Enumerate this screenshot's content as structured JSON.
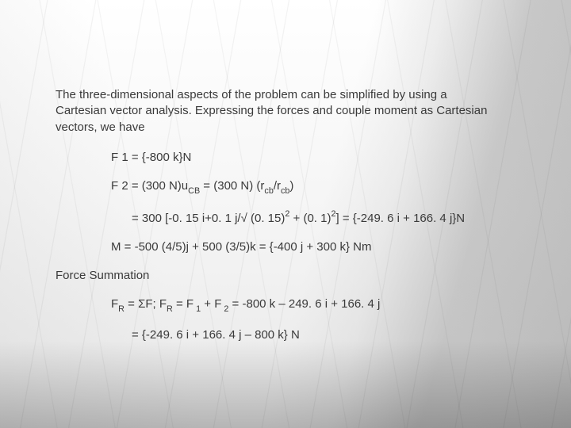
{
  "text_color": "#3a3a3a",
  "font_family": "Arial",
  "base_font_size_pt": 11,
  "background": {
    "style": "architectural-glass-monochrome",
    "base_gradient": [
      "#ffffff",
      "#f5f5f5",
      "#e8e8e8"
    ],
    "diagonal_tint": [
      "rgba(200,200,200,0.25)",
      "rgba(60,60,60,0.25)"
    ],
    "bottom_shadow": "rgba(0,0,0,0.22)"
  },
  "intro": "The three-dimensional aspects of the problem can be simplified by using a Cartesian vector analysis. Expressing the forces and couple moment as Cartesian vectors, we have",
  "lines": {
    "f1": "F 1 = {-800 k}N",
    "f2_part1": "F 2 = (300 N)u",
    "f2_sub1": "CB",
    "f2_part2": " = (300 N) (r",
    "f2_sub2": "cb",
    "f2_part3": "/r",
    "f2_sub3": "cb",
    "f2_part4": ")",
    "f2_eval_a": "= 300 [-0. 15 i+0. 1 j/√ (0. 15)",
    "f2_eval_sup1": "2",
    "f2_eval_b": " + (0. 1)",
    "f2_eval_sup2": "2",
    "f2_eval_c": "] = {-249. 6 i + 166. 4 j}N",
    "m": "M = -500 (4/5)j + 500 (3/5)k = {-400 j + 300 k} Nm",
    "section": "Force Summation",
    "fr_a": "F",
    "fr_subR1": "R",
    "fr_b": " = ΣF;  F",
    "fr_subR2": "R",
    "fr_c": " = F",
    "fr_sub1": " 1",
    "fr_d": " + F",
    "fr_sub2": " 2",
    "fr_e": " = -800 k – 249. 6 i + 166. 4 j",
    "fr_result": "= {-249. 6 i + 166. 4 j – 800 k} N"
  }
}
